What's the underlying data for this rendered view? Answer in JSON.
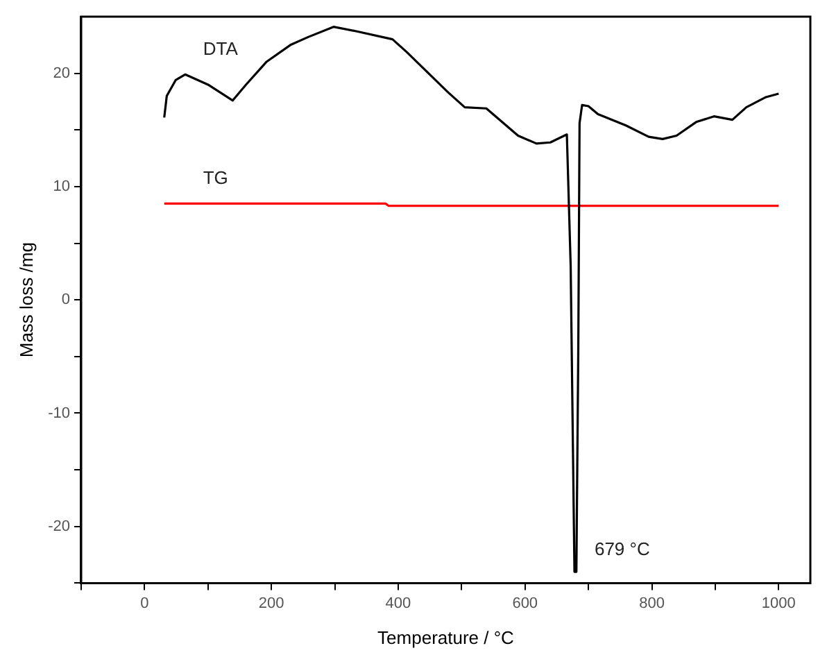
{
  "chart_data": {
    "type": "line",
    "xlabel": "Temperature / °C",
    "ylabel": "Mass loss /mg",
    "xlim": [
      -100,
      1050
    ],
    "xticks": [
      {
        "value": -100,
        "label": null
      },
      0,
      {
        "value": 100,
        "label": null
      },
      200,
      {
        "value": 300,
        "label": null
      },
      400,
      {
        "value": 500,
        "label": null
      },
      600,
      {
        "value": 700,
        "label": null
      },
      800,
      {
        "value": 900,
        "label": null
      },
      1000
    ],
    "ylim": [
      -25,
      25
    ],
    "yticks": [
      {
        "value": -25,
        "label": null
      },
      -20,
      {
        "value": -15,
        "label": null
      },
      -10,
      {
        "value": -5,
        "label": null
      },
      0,
      {
        "value": 5,
        "label": null
      },
      10,
      {
        "value": 15,
        "label": null
      },
      20
    ],
    "grid": false,
    "legend": false,
    "marker": "none",
    "line_style": "solid",
    "series": [
      {
        "name": "DTA",
        "color": "#000000",
        "x": [
          31,
          35,
          49,
          64,
          100,
          139,
          160,
          192,
          230,
          258,
          298,
          335,
          391,
          413,
          479,
          505,
          539,
          589,
          618,
          640,
          662,
          666,
          672,
          678,
          681,
          684,
          686,
          690,
          700,
          715,
          759,
          795,
          817,
          839,
          870,
          898,
          927,
          949,
          980,
          1000
        ],
        "values": [
          16.1,
          18,
          19.4,
          19.9,
          19,
          17.6,
          19,
          21,
          22.5,
          23.2,
          24.1,
          23.7,
          23,
          21.9,
          18.3,
          17,
          16.9,
          14.5,
          13.8,
          13.9,
          14.5,
          14.6,
          3,
          -24,
          -24,
          -4.5,
          15.6,
          17.2,
          17.1,
          16.4,
          15.4,
          14.4,
          14.2,
          14.5,
          15.7,
          16.2,
          15.9,
          17,
          17.9,
          18.2
        ]
      },
      {
        "name": "TG",
        "color": "#ff0000",
        "x": [
          31,
          380,
          385,
          1000
        ],
        "values": [
          8.5,
          8.5,
          8.3,
          8.3
        ]
      }
    ],
    "annotations": [
      {
        "text": "679 °C",
        "x": 679,
        "y": -24
      }
    ]
  }
}
